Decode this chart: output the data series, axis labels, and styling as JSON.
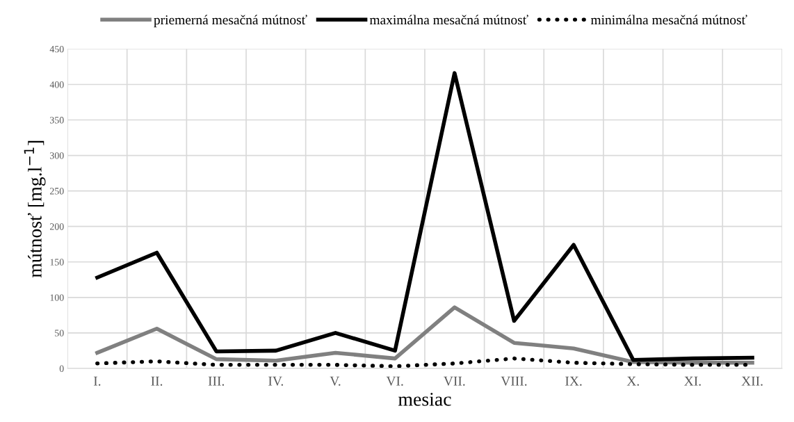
{
  "chart_data": {
    "type": "line",
    "xlabel": "mesiac",
    "ylabel": "mútnosť [mg.l$^{−1}$]",
    "categories": [
      "I.",
      "II.",
      "III.",
      "IV.",
      "V.",
      "VI.",
      "VII.",
      "VIII.",
      "IX.",
      "X.",
      "XI.",
      "XII."
    ],
    "series": [
      {
        "name": "priemerná mesačná mútnosť",
        "color": "#808080",
        "line_style": "solid",
        "values": [
          22,
          56,
          13,
          11,
          22,
          14,
          86,
          36,
          28,
          9,
          8,
          8
        ]
      },
      {
        "name": "maximálna mesačná mútnosť",
        "color": "#000000",
        "line_style": "solid",
        "values": [
          128,
          163,
          24,
          25,
          50,
          25,
          416,
          67,
          174,
          12,
          14,
          15
        ]
      },
      {
        "name": "minimálna mesačná mútnosť",
        "color": "#000000",
        "line_style": "dotted",
        "values": [
          7,
          10,
          5,
          5,
          5,
          3,
          7,
          14,
          8,
          6,
          5,
          5
        ]
      }
    ],
    "ylim": [
      0,
      450
    ],
    "yticks": [
      0,
      50,
      100,
      150,
      200,
      250,
      300,
      350,
      400,
      450
    ],
    "grid": true,
    "legend": "top",
    "marker": "none"
  }
}
